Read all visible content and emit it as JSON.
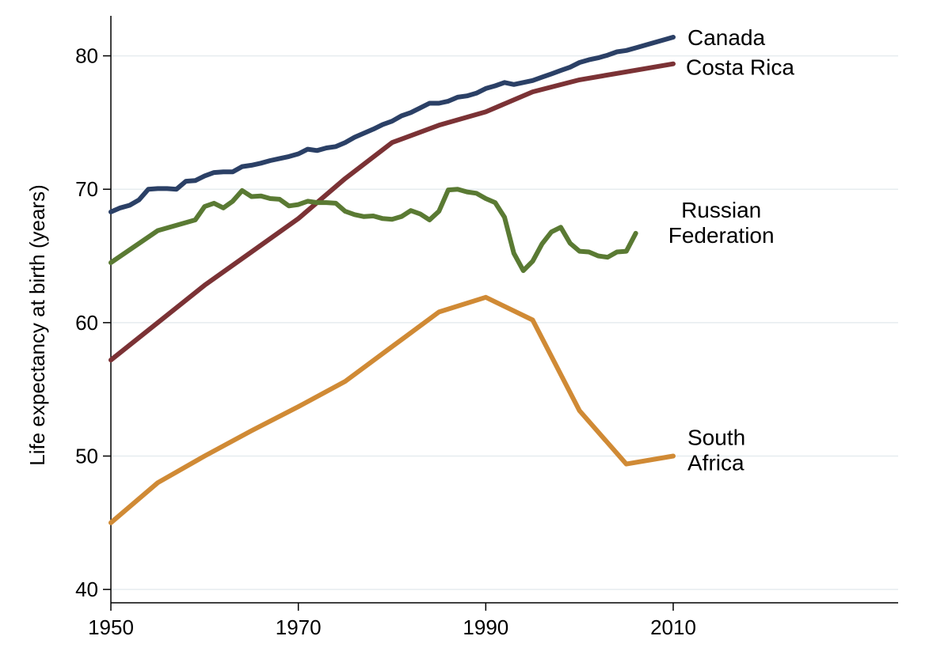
{
  "chart_data": {
    "type": "line",
    "title": "",
    "xlabel": "",
    "ylabel": "Life expectancy at birth (years)",
    "xlim": [
      1950,
      2034
    ],
    "ylim": [
      39,
      83
    ],
    "x_ticks": [
      1950,
      1970,
      1990,
      2010
    ],
    "y_ticks": [
      40,
      50,
      60,
      70,
      80
    ],
    "grid": true,
    "legend": "none",
    "series": [
      {
        "name": "Canada",
        "label_lines": [
          "Canada"
        ],
        "color": "#2b4066",
        "points": [
          [
            1950,
            68.3
          ],
          [
            1951,
            68.6
          ],
          [
            1952,
            68.8
          ],
          [
            1953,
            69.2
          ],
          [
            1954,
            70.0
          ],
          [
            1955,
            70.05
          ],
          [
            1956,
            70.05
          ],
          [
            1957,
            70.0
          ],
          [
            1958,
            70.6
          ],
          [
            1959,
            70.65
          ],
          [
            1960,
            71.0
          ],
          [
            1961,
            71.25
          ],
          [
            1962,
            71.3
          ],
          [
            1963,
            71.3
          ],
          [
            1964,
            71.7
          ],
          [
            1965,
            71.8
          ],
          [
            1966,
            71.95
          ],
          [
            1967,
            72.15
          ],
          [
            1968,
            72.3
          ],
          [
            1969,
            72.45
          ],
          [
            1970,
            72.65
          ],
          [
            1971,
            73.0
          ],
          [
            1972,
            72.9
          ],
          [
            1973,
            73.1
          ],
          [
            1974,
            73.2
          ],
          [
            1975,
            73.5
          ],
          [
            1976,
            73.9
          ],
          [
            1977,
            74.2
          ],
          [
            1978,
            74.5
          ],
          [
            1979,
            74.85
          ],
          [
            1980,
            75.1
          ],
          [
            1981,
            75.5
          ],
          [
            1982,
            75.75
          ],
          [
            1983,
            76.1
          ],
          [
            1984,
            76.45
          ],
          [
            1985,
            76.45
          ],
          [
            1986,
            76.6
          ],
          [
            1987,
            76.9
          ],
          [
            1988,
            77.0
          ],
          [
            1989,
            77.2
          ],
          [
            1990,
            77.55
          ],
          [
            1991,
            77.75
          ],
          [
            1992,
            78.0
          ],
          [
            1993,
            77.85
          ],
          [
            1994,
            78.0
          ],
          [
            1995,
            78.15
          ],
          [
            1996,
            78.4
          ],
          [
            1997,
            78.65
          ],
          [
            1998,
            78.9
          ],
          [
            1999,
            79.15
          ],
          [
            2000,
            79.5
          ],
          [
            2001,
            79.7
          ],
          [
            2002,
            79.85
          ],
          [
            2003,
            80.05
          ],
          [
            2004,
            80.3
          ],
          [
            2005,
            80.4
          ],
          [
            2006,
            80.6
          ],
          [
            2007,
            80.8
          ],
          [
            2008,
            81.0
          ],
          [
            2009,
            81.2
          ],
          [
            2010,
            81.4
          ]
        ]
      },
      {
        "name": "Costa Rica",
        "label_lines": [
          "Costa Rica"
        ],
        "color": "#7b3235",
        "points": [
          [
            1950,
            57.2
          ],
          [
            1955,
            60.0
          ],
          [
            1960,
            62.8
          ],
          [
            1965,
            65.3
          ],
          [
            1970,
            67.8
          ],
          [
            1975,
            70.8
          ],
          [
            1980,
            73.5
          ],
          [
            1985,
            74.8
          ],
          [
            1990,
            75.8
          ],
          [
            1995,
            77.3
          ],
          [
            2000,
            78.2
          ],
          [
            2005,
            78.8
          ],
          [
            2010,
            79.4
          ]
        ]
      },
      {
        "name": "Russian Federation",
        "label_lines": [
          "Russian",
          "Federation"
        ],
        "color": "#5a7a33",
        "points": [
          [
            1950,
            64.5
          ],
          [
            1955,
            66.9
          ],
          [
            1958,
            67.5
          ],
          [
            1959,
            67.7
          ],
          [
            1960,
            68.7
          ],
          [
            1961,
            68.95
          ],
          [
            1962,
            68.6
          ],
          [
            1963,
            69.1
          ],
          [
            1964,
            69.9
          ],
          [
            1965,
            69.45
          ],
          [
            1966,
            69.5
          ],
          [
            1967,
            69.3
          ],
          [
            1968,
            69.25
          ],
          [
            1969,
            68.75
          ],
          [
            1970,
            68.85
          ],
          [
            1971,
            69.1
          ],
          [
            1972,
            69.0
          ],
          [
            1973,
            69.0
          ],
          [
            1974,
            68.95
          ],
          [
            1975,
            68.35
          ],
          [
            1976,
            68.1
          ],
          [
            1977,
            67.95
          ],
          [
            1978,
            68.0
          ],
          [
            1979,
            67.8
          ],
          [
            1980,
            67.75
          ],
          [
            1981,
            67.95
          ],
          [
            1982,
            68.4
          ],
          [
            1983,
            68.15
          ],
          [
            1984,
            67.7
          ],
          [
            1985,
            68.35
          ],
          [
            1986,
            69.95
          ],
          [
            1987,
            70.0
          ],
          [
            1988,
            69.8
          ],
          [
            1989,
            69.7
          ],
          [
            1990,
            69.3
          ],
          [
            1991,
            69.0
          ],
          [
            1992,
            67.9
          ],
          [
            1993,
            65.2
          ],
          [
            1994,
            63.9
          ],
          [
            1995,
            64.6
          ],
          [
            1996,
            65.9
          ],
          [
            1997,
            66.8
          ],
          [
            1998,
            67.15
          ],
          [
            1999,
            65.95
          ],
          [
            2000,
            65.35
          ],
          [
            2001,
            65.3
          ],
          [
            2002,
            65.0
          ],
          [
            2003,
            64.9
          ],
          [
            2004,
            65.3
          ],
          [
            2005,
            65.35
          ],
          [
            2006,
            66.7
          ]
        ]
      },
      {
        "name": "South Africa",
        "label_lines": [
          "South",
          "Africa"
        ],
        "color": "#d08a35",
        "points": [
          [
            1950,
            45.0
          ],
          [
            1955,
            48.0
          ],
          [
            1960,
            50.0
          ],
          [
            1965,
            51.9
          ],
          [
            1970,
            53.7
          ],
          [
            1975,
            55.6
          ],
          [
            1980,
            58.2
          ],
          [
            1985,
            60.8
          ],
          [
            1990,
            61.9
          ],
          [
            1995,
            60.2
          ],
          [
            2000,
            53.4
          ],
          [
            2005,
            49.4
          ],
          [
            2010,
            50.0
          ]
        ]
      }
    ]
  }
}
